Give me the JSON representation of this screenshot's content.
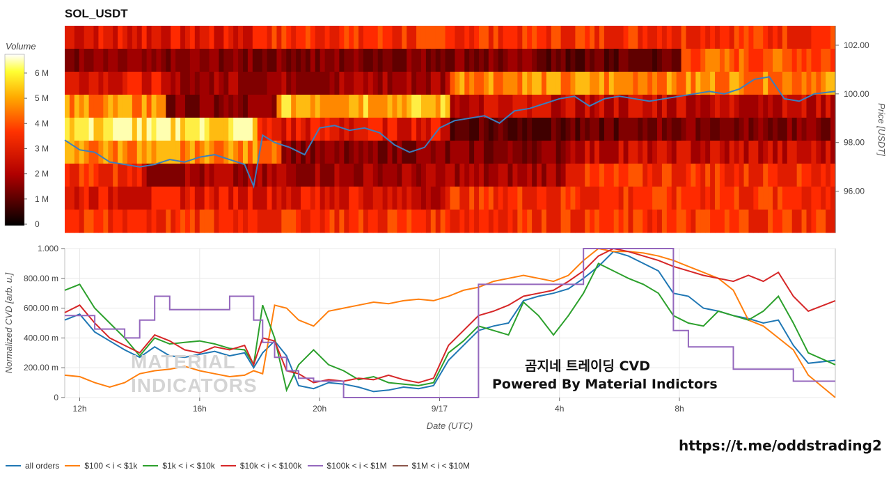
{
  "title": "SOL_USDT",
  "heatmap_panel": {
    "colorbar_title": "Volume",
    "colorbar_ticks": [
      "0",
      "1 M",
      "2 M",
      "3 M",
      "4 M",
      "5 M",
      "6 M"
    ],
    "price_axis_label": "Price [USDT]",
    "price_ticks": [
      "96.00",
      "98.00",
      "100.00",
      "102.00"
    ]
  },
  "cvd_panel": {
    "y_axis_label": "Normalized CVD [arb. u.]",
    "y_ticks": [
      "0",
      "200.00 m",
      "400.00 m",
      "600.00 m",
      "800.00 m",
      "1.000"
    ],
    "x_axis_label": "Date (UTC)",
    "x_ticks": [
      "12h",
      "16h",
      "20h",
      "9/17",
      "4h",
      "8h"
    ]
  },
  "overlay": {
    "line1": "곰지네 트레이딩 CVD",
    "line2": "Powered By Material Indictors",
    "link": "https://t.me/oddstrading2",
    "watermark_line1": "MATERIAL",
    "watermark_line2": "INDICATORS"
  },
  "legend": [
    {
      "label": "all orders",
      "color": "#1f77b4"
    },
    {
      "label": "$100 < i < $1k",
      "color": "#ff7f0e"
    },
    {
      "label": "$1k < i < $10k",
      "color": "#2ca02c"
    },
    {
      "label": "$10k < i < $100k",
      "color": "#d62728"
    },
    {
      "label": "$100k < i < $1M",
      "color": "#9467bd"
    },
    {
      "label": "$1M < i < $10M",
      "color": "#8c564b"
    }
  ],
  "chart_data": [
    {
      "type": "heatmap",
      "title": "SOL_USDT",
      "x_ticks": [
        "12h",
        "16h",
        "20h",
        "9/17",
        "4h",
        "8h"
      ],
      "ylabel": "Price [USDT]",
      "ylim": [
        94.3,
        102.8
      ],
      "colorbar": {
        "label": "Volume",
        "range": [
          0,
          6800000
        ],
        "colormap": "hot"
      },
      "price_series": {
        "name": "price",
        "x_hours": [
          11.5,
          12,
          12.5,
          13,
          13.5,
          14,
          14.5,
          15,
          15.5,
          16,
          16.5,
          17,
          17.5,
          17.8,
          18.1,
          18.5,
          19,
          19.5,
          20,
          20.5,
          21,
          21.5,
          22,
          22.5,
          23,
          23.5,
          24,
          24.5,
          25,
          25.5,
          26,
          26.5,
          27,
          27.5,
          28,
          28.5,
          29,
          29.5,
          30,
          30.5,
          31,
          31.5,
          32,
          32.5,
          33,
          33.5,
          34,
          34.5,
          35,
          35.5,
          36,
          36.5,
          37.2
        ],
        "y": [
          98.1,
          97.7,
          97.6,
          97.2,
          97.1,
          97.0,
          97.1,
          97.3,
          97.2,
          97.4,
          97.5,
          97.3,
          97.1,
          96.2,
          98.3,
          98.0,
          97.8,
          97.5,
          98.6,
          98.7,
          98.5,
          98.6,
          98.4,
          97.9,
          97.6,
          97.8,
          98.6,
          98.9,
          99.0,
          99.1,
          98.8,
          99.3,
          99.4,
          99.6,
          99.8,
          99.9,
          99.5,
          99.8,
          99.9,
          99.8,
          99.7,
          99.8,
          99.9,
          100.0,
          100.1,
          100.0,
          100.2,
          100.6,
          100.7,
          99.8,
          99.7,
          100.0,
          100.1
        ]
      }
    },
    {
      "type": "line",
      "xlabel": "Date (UTC)",
      "ylabel": "Normalized CVD [arb. u.]",
      "x_ticks": [
        "12h",
        "16h",
        "20h",
        "9/17",
        "4h",
        "8h"
      ],
      "ylim": [
        0,
        1.0
      ],
      "series": [
        {
          "name": "all orders",
          "color": "#1f77b4",
          "x": [
            11.5,
            12,
            12.5,
            13,
            13.5,
            14,
            14.5,
            15,
            15.5,
            16,
            16.5,
            17,
            17.5,
            17.8,
            18.1,
            18.5,
            18.9,
            19.3,
            19.8,
            20.3,
            20.8,
            21.3,
            21.8,
            22.3,
            22.8,
            23.3,
            23.8,
            24.3,
            24.8,
            25.3,
            25.8,
            26.3,
            26.8,
            27.3,
            27.8,
            28.3,
            28.8,
            29.3,
            29.8,
            30.3,
            30.8,
            31.3,
            31.8,
            32.3,
            32.8,
            33.3,
            33.8,
            34.3,
            34.8,
            35.3,
            35.8,
            36.3,
            37.2
          ],
          "y": [
            0.52,
            0.56,
            0.44,
            0.38,
            0.32,
            0.27,
            0.34,
            0.28,
            0.27,
            0.29,
            0.31,
            0.28,
            0.3,
            0.2,
            0.3,
            0.38,
            0.28,
            0.08,
            0.06,
            0.1,
            0.09,
            0.07,
            0.04,
            0.05,
            0.07,
            0.06,
            0.08,
            0.25,
            0.35,
            0.45,
            0.48,
            0.5,
            0.65,
            0.68,
            0.7,
            0.73,
            0.8,
            0.88,
            0.98,
            0.95,
            0.9,
            0.85,
            0.7,
            0.68,
            0.6,
            0.58,
            0.55,
            0.53,
            0.5,
            0.52,
            0.35,
            0.23,
            0.25
          ]
        },
        {
          "name": "$100 < i < $1k",
          "color": "#ff7f0e",
          "x": [
            11.5,
            12,
            12.5,
            13,
            13.5,
            14,
            14.5,
            15,
            15.5,
            16,
            16.5,
            17,
            17.5,
            17.8,
            18.1,
            18.5,
            18.9,
            19.3,
            19.8,
            20.3,
            20.8,
            21.3,
            21.8,
            22.3,
            22.8,
            23.3,
            23.8,
            24.3,
            24.8,
            25.3,
            25.8,
            26.3,
            26.8,
            27.3,
            27.8,
            28.3,
            28.8,
            29.3,
            29.8,
            30.3,
            30.8,
            31.3,
            31.8,
            32.3,
            32.8,
            33.3,
            33.8,
            34.3,
            34.8,
            35.3,
            35.8,
            36.3,
            37.2
          ],
          "y": [
            0.15,
            0.14,
            0.1,
            0.07,
            0.1,
            0.16,
            0.18,
            0.19,
            0.21,
            0.18,
            0.16,
            0.14,
            0.15,
            0.18,
            0.16,
            0.62,
            0.6,
            0.52,
            0.48,
            0.58,
            0.6,
            0.62,
            0.64,
            0.63,
            0.65,
            0.66,
            0.65,
            0.68,
            0.72,
            0.74,
            0.78,
            0.8,
            0.82,
            0.8,
            0.78,
            0.82,
            0.92,
            1.0,
            0.98,
            0.98,
            0.97,
            0.95,
            0.92,
            0.88,
            0.84,
            0.8,
            0.72,
            0.52,
            0.48,
            0.4,
            0.32,
            0.15,
            0.0
          ]
        },
        {
          "name": "$1k < i < $10k",
          "color": "#2ca02c",
          "x": [
            11.5,
            12,
            12.5,
            13,
            13.5,
            14,
            14.5,
            15,
            15.5,
            16,
            16.5,
            17,
            17.5,
            17.8,
            18.1,
            18.5,
            18.9,
            19.3,
            19.8,
            20.3,
            20.8,
            21.3,
            21.8,
            22.3,
            22.8,
            23.3,
            23.8,
            24.3,
            24.8,
            25.3,
            25.8,
            26.3,
            26.8,
            27.3,
            27.8,
            28.3,
            28.8,
            29.3,
            29.8,
            30.3,
            30.8,
            31.3,
            31.8,
            32.3,
            32.8,
            33.3,
            33.8,
            34.3,
            34.8,
            35.3,
            35.8,
            36.3,
            37.2
          ],
          "y": [
            0.72,
            0.76,
            0.6,
            0.5,
            0.4,
            0.28,
            0.4,
            0.36,
            0.37,
            0.38,
            0.36,
            0.33,
            0.32,
            0.22,
            0.62,
            0.4,
            0.05,
            0.22,
            0.32,
            0.22,
            0.18,
            0.12,
            0.14,
            0.1,
            0.09,
            0.08,
            0.1,
            0.3,
            0.38,
            0.48,
            0.45,
            0.42,
            0.64,
            0.55,
            0.42,
            0.55,
            0.7,
            0.9,
            0.85,
            0.8,
            0.76,
            0.7,
            0.55,
            0.5,
            0.48,
            0.58,
            0.55,
            0.52,
            0.58,
            0.68,
            0.5,
            0.3,
            0.22
          ]
        },
        {
          "name": "$10k < i < $100k",
          "color": "#d62728",
          "x": [
            11.5,
            12,
            12.5,
            13,
            13.5,
            14,
            14.5,
            15,
            15.5,
            16,
            16.5,
            17,
            17.5,
            17.8,
            18.1,
            18.5,
            18.9,
            19.3,
            19.8,
            20.3,
            20.8,
            21.3,
            21.8,
            22.3,
            22.8,
            23.3,
            23.8,
            24.3,
            24.8,
            25.3,
            25.8,
            26.3,
            26.8,
            27.3,
            27.8,
            28.3,
            28.8,
            29.3,
            29.8,
            30.3,
            30.8,
            31.3,
            31.8,
            32.3,
            32.8,
            33.3,
            33.8,
            34.3,
            34.8,
            35.3,
            35.8,
            36.3,
            37.2
          ],
          "y": [
            0.57,
            0.62,
            0.5,
            0.4,
            0.35,
            0.3,
            0.42,
            0.38,
            0.32,
            0.3,
            0.34,
            0.32,
            0.35,
            0.22,
            0.4,
            0.38,
            0.18,
            0.16,
            0.1,
            0.12,
            0.11,
            0.13,
            0.12,
            0.15,
            0.12,
            0.1,
            0.13,
            0.35,
            0.45,
            0.55,
            0.58,
            0.62,
            0.68,
            0.7,
            0.72,
            0.78,
            0.85,
            0.95,
            1.0,
            0.98,
            0.95,
            0.92,
            0.88,
            0.85,
            0.82,
            0.8,
            0.78,
            0.82,
            0.78,
            0.84,
            0.68,
            0.58,
            0.65
          ]
        },
        {
          "name": "$100k < i < $1M",
          "color": "#9467bd",
          "x": [
            11.5,
            12,
            12.5,
            13,
            13.5,
            14,
            14.5,
            15,
            15.5,
            16,
            16.5,
            17,
            17.5,
            17.8,
            18.1,
            18.5,
            18.9,
            19.3,
            19.8,
            20.3,
            20.8,
            21.3,
            21.8,
            22.3,
            22.8,
            23.3,
            23.8,
            24.3,
            24.8,
            25.3,
            25.8,
            26.3,
            26.8,
            27.3,
            27.8,
            28.3,
            28.8,
            29.3,
            29.8,
            30.3,
            30.8,
            31.3,
            31.8,
            32.3,
            32.8,
            33.3,
            33.8,
            34.3,
            34.8,
            35.3,
            35.8,
            36.3,
            37.2
          ],
          "y": [
            0.55,
            0.55,
            0.46,
            0.46,
            0.4,
            0.52,
            0.68,
            0.59,
            0.59,
            0.59,
            0.59,
            0.68,
            0.68,
            0.52,
            0.37,
            0.27,
            0.18,
            0.13,
            0.11,
            0.11,
            0.0,
            0.0,
            0.0,
            0.0,
            0.0,
            0.0,
            0.0,
            0.0,
            0.0,
            0.76,
            0.76,
            0.76,
            0.76,
            0.76,
            0.76,
            0.76,
            1.0,
            1.0,
            1.0,
            1.0,
            1.0,
            1.0,
            0.45,
            0.34,
            0.34,
            0.34,
            0.19,
            0.19,
            0.19,
            0.19,
            0.11,
            0.11,
            0.11
          ]
        }
      ]
    }
  ]
}
